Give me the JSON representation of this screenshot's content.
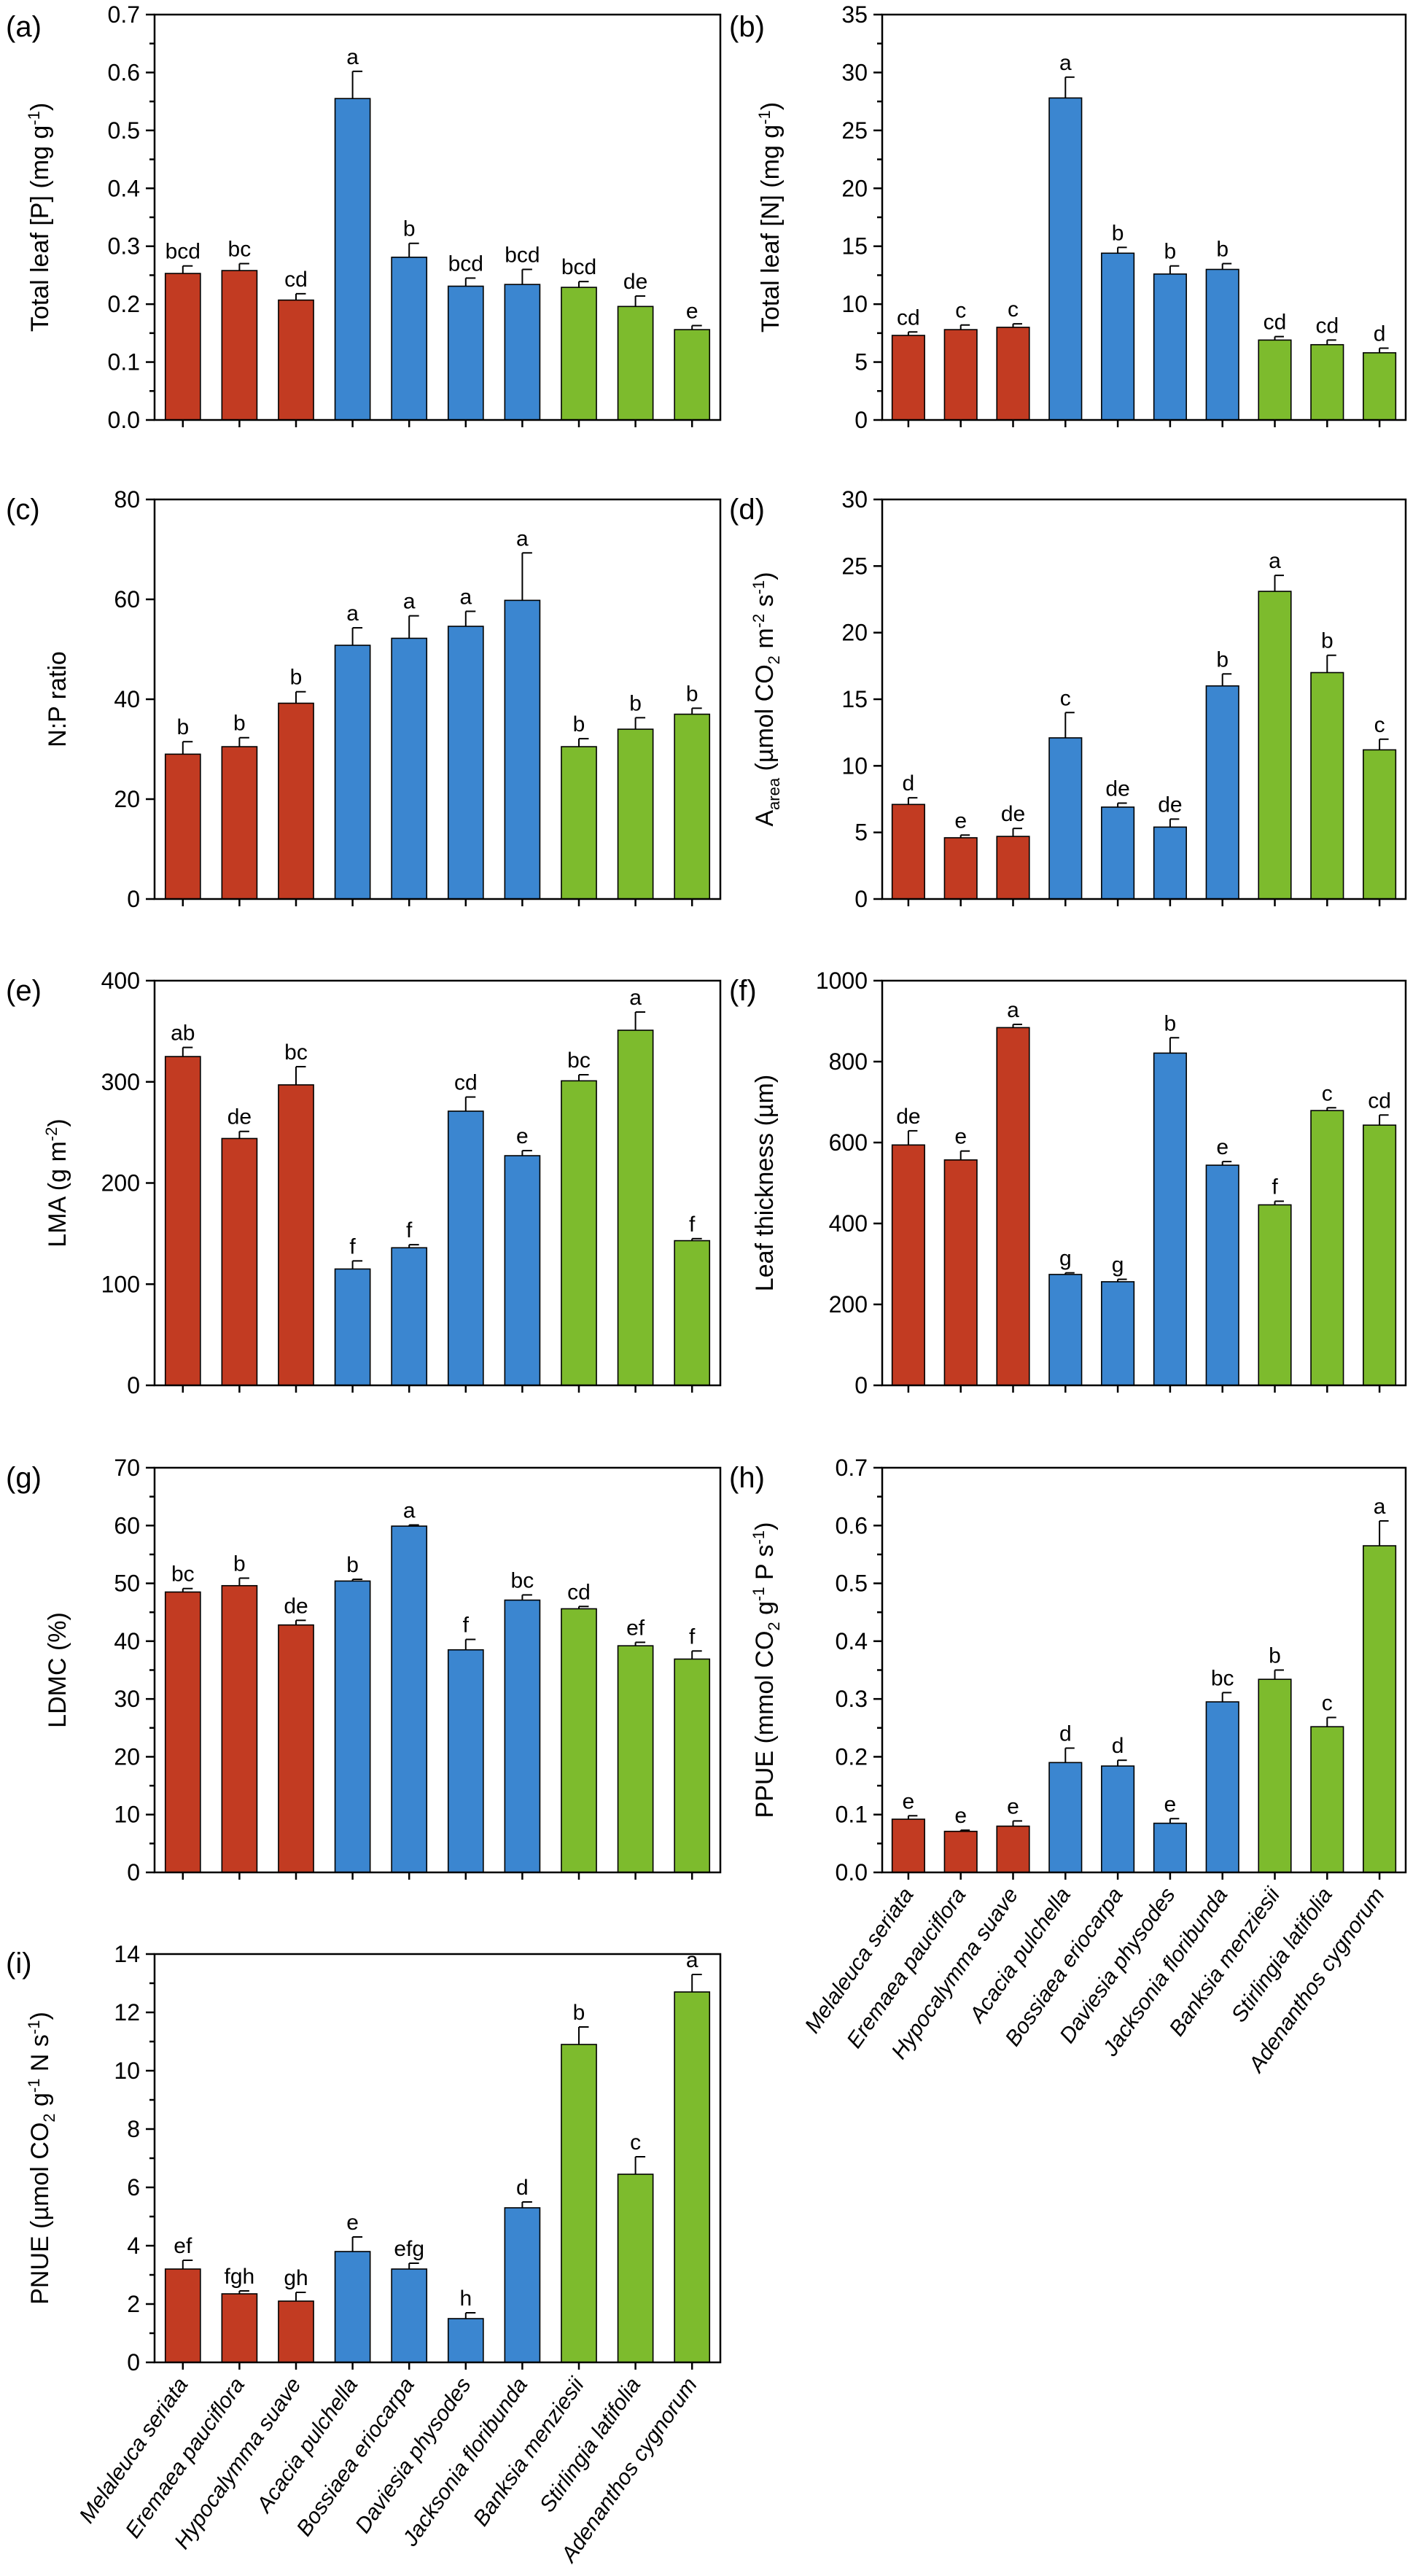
{
  "colors": {
    "red": "#c23b22",
    "blue": "#3b86d0",
    "green": "#7dbb2d"
  },
  "species": [
    "Melaleuca seriata",
    "Eremaea pauciflora",
    "Hypocalymma suave",
    "Acacia pulchella",
    "Bossiaea eriocarpa",
    "Daviesia physodes",
    "Jacksonia floribunda",
    "Banksia menziesii",
    "Stirlingia latifolia",
    "Adenanthos cygnorum"
  ],
  "species_groups": [
    "red",
    "red",
    "red",
    "blue",
    "blue",
    "blue",
    "blue",
    "green",
    "green",
    "green"
  ],
  "chart_data": [
    {
      "panel_label": "(a)",
      "type": "bar",
      "ylabel": [
        "Total leaf [P] (mg g",
        "-1",
        ")"
      ],
      "ylim": [
        0,
        0.7
      ],
      "yticks": [
        "0.0",
        "0.1",
        "0.2",
        "0.3",
        "0.4",
        "0.5",
        "0.6",
        "0.7"
      ],
      "values": [
        0.253,
        0.258,
        0.207,
        0.555,
        0.281,
        0.231,
        0.234,
        0.229,
        0.196,
        0.156
      ],
      "errors": [
        0.013,
        0.012,
        0.011,
        0.047,
        0.024,
        0.014,
        0.026,
        0.01,
        0.018,
        0.007
      ],
      "letters": [
        "bcd",
        "bc",
        "cd",
        "a",
        "b",
        "bcd",
        "bcd",
        "bcd",
        "de",
        "e"
      ]
    },
    {
      "panel_label": "(b)",
      "type": "bar",
      "ylabel": [
        "Total leaf [N] (mg g",
        "-1",
        ")"
      ],
      "ylim": [
        0,
        35
      ],
      "yticks": [
        "0",
        "5",
        "10",
        "15",
        "20",
        "25",
        "30",
        "35"
      ],
      "values": [
        7.3,
        7.8,
        8.0,
        27.8,
        14.4,
        12.6,
        13.0,
        6.9,
        6.5,
        5.8
      ],
      "errors": [
        0.3,
        0.4,
        0.3,
        1.8,
        0.5,
        0.7,
        0.5,
        0.3,
        0.4,
        0.4
      ],
      "letters": [
        "cd",
        "c",
        "c",
        "a",
        "b",
        "b",
        "b",
        "cd",
        "cd",
        "d"
      ]
    },
    {
      "panel_label": "(c)",
      "type": "bar",
      "ylabel": [
        "N:P ratio"
      ],
      "ylim": [
        0,
        80
      ],
      "yticks": [
        "0",
        "20",
        "40",
        "60",
        "80"
      ],
      "values": [
        29.0,
        30.5,
        39.2,
        50.8,
        52.2,
        54.6,
        59.8,
        30.5,
        34.0,
        37.0
      ],
      "errors": [
        2.5,
        1.8,
        2.3,
        3.5,
        4.5,
        3.0,
        9.5,
        1.6,
        2.3,
        1.2
      ],
      "letters": [
        "b",
        "b",
        "b",
        "a",
        "a",
        "a",
        "a",
        "b",
        "b",
        "b"
      ]
    },
    {
      "panel_label": "(d)",
      "type": "bar",
      "ylabel": [
        "A",
        "area",
        " (µmol CO",
        "2",
        " m",
        "-2",
        " s",
        "-1",
        ")"
      ],
      "ylim": [
        0,
        30
      ],
      "yticks": [
        "0",
        "5",
        "10",
        "15",
        "20",
        "25",
        "30"
      ],
      "values": [
        7.1,
        4.6,
        4.7,
        12.1,
        6.9,
        5.4,
        16.0,
        23.1,
        17.0,
        11.2
      ],
      "errors": [
        0.5,
        0.2,
        0.6,
        1.9,
        0.3,
        0.6,
        0.9,
        1.2,
        1.3,
        0.8
      ],
      "letters": [
        "d",
        "e",
        "de",
        "c",
        "de",
        "de",
        "b",
        "a",
        "b",
        "c"
      ]
    },
    {
      "panel_label": "(e)",
      "type": "bar",
      "ylabel": [
        "LMA (g m",
        "-2",
        ")"
      ],
      "ylim": [
        0,
        400
      ],
      "yticks": [
        "0",
        "100",
        "200",
        "300",
        "400"
      ],
      "values": [
        325,
        244,
        297,
        115,
        136,
        271,
        227,
        301,
        351,
        143
      ],
      "errors": [
        9,
        7,
        18,
        8,
        3,
        14,
        5,
        6,
        18,
        2
      ],
      "letters": [
        "ab",
        "de",
        "bc",
        "f",
        "f",
        "cd",
        "e",
        "bc",
        "a",
        "f"
      ]
    },
    {
      "panel_label": "(f)",
      "type": "bar",
      "ylabel": [
        "Leaf thickness (µm)"
      ],
      "ylim": [
        0,
        1000
      ],
      "yticks": [
        "0",
        "200",
        "400",
        "600",
        "800",
        "1000"
      ],
      "values": [
        594,
        557,
        884,
        274,
        256,
        821,
        544,
        446,
        679,
        643
      ],
      "errors": [
        35,
        22,
        8,
        4,
        6,
        38,
        9,
        9,
        7,
        25
      ],
      "letters": [
        "de",
        "e",
        "a",
        "g",
        "g",
        "b",
        "e",
        "f",
        "c",
        "cd"
      ]
    },
    {
      "panel_label": "(g)",
      "type": "bar",
      "ylabel": [
        "LDMC (%)"
      ],
      "ylim": [
        0,
        70
      ],
      "yticks": [
        "0",
        "10",
        "20",
        "30",
        "40",
        "50",
        "60",
        "70"
      ],
      "values": [
        48.5,
        49.6,
        42.8,
        50.4,
        59.9,
        38.5,
        47.1,
        45.6,
        39.2,
        36.9
      ],
      "errors": [
        0.6,
        1.3,
        0.8,
        0.3,
        0.2,
        1.8,
        0.9,
        0.4,
        0.6,
        1.4
      ],
      "letters": [
        "bc",
        "b",
        "de",
        "b",
        "a",
        "f",
        "bc",
        "cd",
        "ef",
        "f"
      ]
    },
    {
      "panel_label": "(h)",
      "type": "bar",
      "ylabel": [
        "PPUE (mmol CO",
        "2",
        " g",
        "-1",
        " P s",
        "-1",
        ")"
      ],
      "ylim": [
        0,
        0.7
      ],
      "yticks": [
        "0.0",
        "0.1",
        "0.2",
        "0.3",
        "0.4",
        "0.5",
        "0.6",
        "0.7"
      ],
      "values": [
        0.092,
        0.071,
        0.08,
        0.19,
        0.184,
        0.085,
        0.295,
        0.334,
        0.252,
        0.565
      ],
      "errors": [
        0.006,
        0.002,
        0.009,
        0.025,
        0.01,
        0.008,
        0.016,
        0.016,
        0.016,
        0.043
      ],
      "letters": [
        "e",
        "e",
        "e",
        "d",
        "d",
        "e",
        "bc",
        "b",
        "c",
        "a"
      ]
    },
    {
      "panel_label": "(i)",
      "type": "bar",
      "ylabel": [
        "PNUE (µmol CO",
        "2",
        " g",
        "-1",
        " N s",
        "-1",
        ")"
      ],
      "ylim": [
        0,
        14
      ],
      "yticks": [
        "0",
        "2",
        "4",
        "6",
        "8",
        "10",
        "12",
        "14"
      ],
      "values": [
        3.2,
        2.35,
        2.1,
        3.8,
        3.2,
        1.5,
        5.3,
        10.9,
        6.45,
        12.7
      ],
      "errors": [
        0.3,
        0.1,
        0.3,
        0.5,
        0.2,
        0.2,
        0.2,
        0.6,
        0.6,
        0.6
      ],
      "letters": [
        "ef",
        "fgh",
        "gh",
        "e",
        "efg",
        "h",
        "d",
        "b",
        "c",
        "a"
      ]
    }
  ]
}
